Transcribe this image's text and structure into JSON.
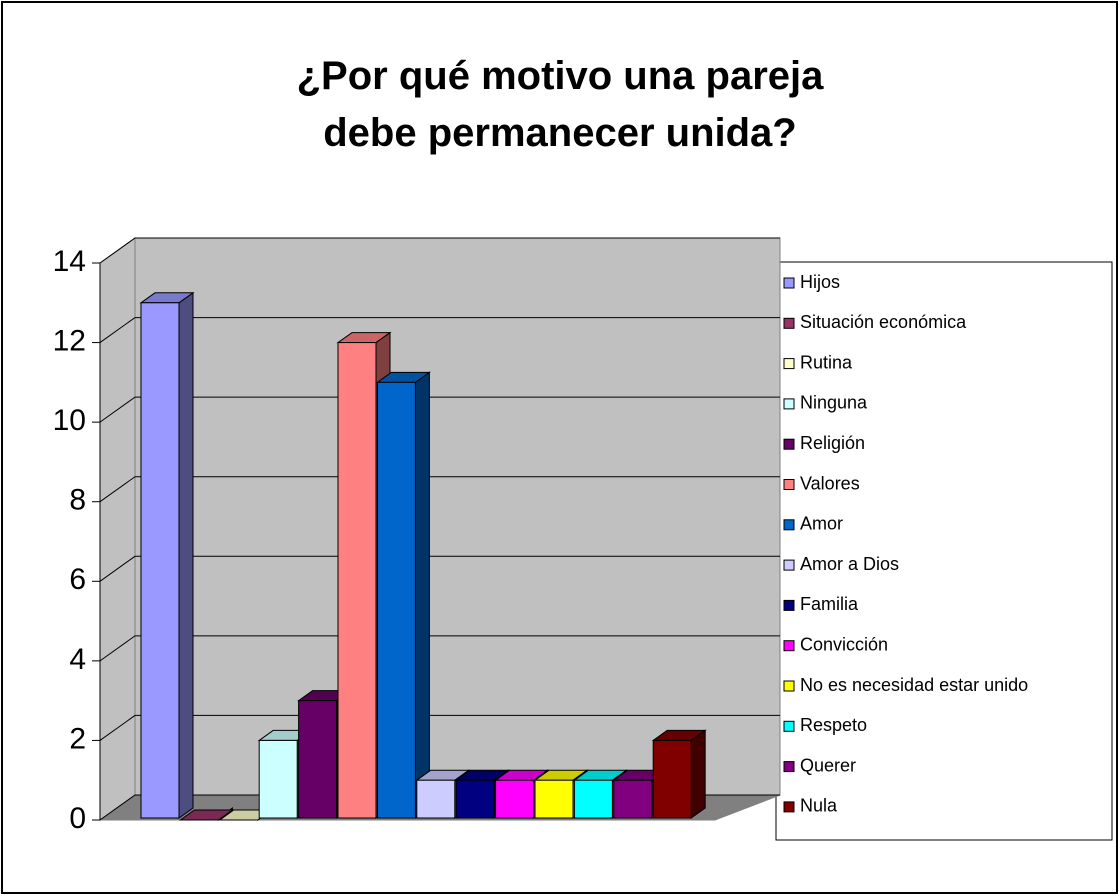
{
  "chart_data": {
    "type": "bar",
    "title": "¿Por qué motivo una pareja debe permanecer unida?",
    "categories": [
      null
    ],
    "series": [
      {
        "name": "Hijos",
        "color": "#9999ff",
        "values": [
          13
        ]
      },
      {
        "name": "Situación económica",
        "color": "#993366",
        "values": [
          0
        ]
      },
      {
        "name": "Rutina",
        "color": "#ffffcc",
        "values": [
          0
        ]
      },
      {
        "name": "Ninguna",
        "color": "#ccffff",
        "values": [
          2
        ]
      },
      {
        "name": "Religión",
        "color": "#660066",
        "values": [
          3
        ]
      },
      {
        "name": "Valores",
        "color": "#ff8080",
        "values": [
          12
        ]
      },
      {
        "name": "Amor",
        "color": "#0066cc",
        "values": [
          11
        ]
      },
      {
        "name": "Amor a Dios",
        "color": "#ccccff",
        "values": [
          1
        ]
      },
      {
        "name": "Familia",
        "color": "#000080",
        "values": [
          1
        ]
      },
      {
        "name": "Convicción",
        "color": "#ff00ff",
        "values": [
          1
        ]
      },
      {
        "name": "No es necesidad estar unido",
        "color": "#ffff00",
        "values": [
          1
        ]
      },
      {
        "name": "Respeto",
        "color": "#00ffff",
        "values": [
          1
        ]
      },
      {
        "name": "Querer",
        "color": "#800080",
        "values": [
          1
        ]
      },
      {
        "name": "Nula",
        "color": "#800000",
        "values": [
          2
        ]
      }
    ],
    "ylim": [
      0,
      14
    ],
    "yticks": [
      0,
      2,
      4,
      6,
      8,
      10,
      12,
      14
    ],
    "grid": true,
    "legend": "right"
  }
}
